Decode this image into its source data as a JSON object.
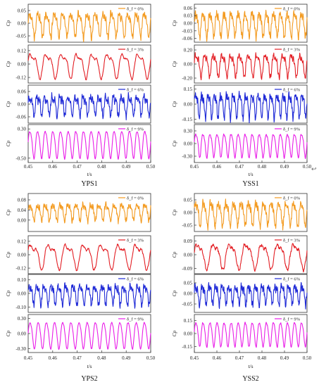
{
  "page": {
    "return_glyph": "↩"
  },
  "chart_data": [
    {
      "type": "line",
      "title": "YPS1",
      "xlabel": "t/s",
      "xlim": [
        0.45,
        0.5
      ],
      "xticks": [
        "0.45",
        "0.46",
        "0.47",
        "0.48",
        "0.49",
        "0.50"
      ],
      "panels": [
        {
          "ylabel": "Cp",
          "legend": "δ_f = 0%",
          "color": "#f39a1f",
          "ylim": [
            -0.075,
            0.075
          ],
          "yticks": [
            "0.05",
            "0.00",
            "-0.05"
          ],
          "series": {
            "cycles": 15,
            "mean": 0.0,
            "amp": 0.05,
            "harm2": 0.35,
            "noise": 0.45,
            "seed": 11
          }
        },
        {
          "ylabel": "Cp",
          "legend": "δ_f = 3%",
          "color": "#e31e24",
          "ylim": [
            -0.17,
            0.17
          ],
          "yticks": [
            "0.12",
            "0.00",
            "-0.12"
          ],
          "series": {
            "cycles": 8,
            "mean": 0.0,
            "amp": 0.12,
            "harm2": 0.45,
            "noise": 0.12,
            "seed": 23
          }
        },
        {
          "ylabel": "Cp",
          "legend": "δ_f = 6%",
          "color": "#1d28d6",
          "ylim": [
            -0.09,
            0.09
          ],
          "yticks": [
            "0.06",
            "0.00",
            "-0.06"
          ],
          "series": {
            "cycles": 16,
            "mean": 0.0,
            "amp": 0.05,
            "harm2": 0.55,
            "noise": 0.55,
            "seed": 37
          }
        },
        {
          "ylabel": "Cp",
          "legend": "δ_f = 9%",
          "color": "#e91ee8",
          "ylim": [
            -0.62,
            0.42
          ],
          "yticks": [
            "0.30",
            "-0.50"
          ],
          "series": {
            "cycles": 16,
            "mean": -0.1,
            "amp": 0.4,
            "harm2": 0.15,
            "noise": 0.05,
            "seed": 41
          }
        }
      ]
    },
    {
      "type": "line",
      "title": "YSS1",
      "xlabel": "t/s",
      "xlim": [
        0.45,
        0.5
      ],
      "xticks": [
        "0.45",
        "0.46",
        "0.47",
        "0.48",
        "0.49",
        "0.50"
      ],
      "panels": [
        {
          "ylabel": "Cp",
          "legend": "δ_f = 0%",
          "color": "#f39a1f",
          "ylim": [
            -0.075,
            0.075
          ],
          "yticks": [
            "0.06",
            "0.03",
            "0.00",
            "-0.03",
            "-0.06"
          ],
          "series": {
            "cycles": 16,
            "mean": 0.0,
            "amp": 0.05,
            "harm2": 0.3,
            "noise": 0.45,
            "seed": 53
          }
        },
        {
          "ylabel": "Cp",
          "legend": "δ_f = 3%",
          "color": "#e31e24",
          "ylim": [
            -0.27,
            0.27
          ],
          "yticks": [
            "0.20",
            "0.00",
            "-0.20"
          ],
          "series": {
            "cycles": 13,
            "mean": 0.0,
            "amp": 0.17,
            "harm2": 0.4,
            "noise": 0.35,
            "seed": 61
          }
        },
        {
          "ylabel": "Cp",
          "legend": "δ_f = 6%",
          "color": "#1d28d6",
          "ylim": [
            -0.19,
            0.19
          ],
          "yticks": [
            "0.15",
            "0.00",
            "-0.15"
          ],
          "series": {
            "cycles": 18,
            "mean": 0.0,
            "amp": 0.13,
            "harm2": 0.45,
            "noise": 0.45,
            "seed": 71
          }
        },
        {
          "ylabel": "Cp",
          "legend": "δ_f = 9%",
          "color": "#e91ee8",
          "ylim": [
            -0.45,
            0.45
          ],
          "yticks": [
            "0.30",
            "0.00",
            "-0.30"
          ],
          "series": {
            "cycles": 16,
            "mean": -0.02,
            "amp": 0.3,
            "harm2": 0.2,
            "noise": 0.1,
            "seed": 83
          }
        }
      ]
    },
    {
      "type": "line",
      "title": "YPS2",
      "xlabel": "t/s",
      "xlim": [
        0.45,
        0.5
      ],
      "xticks": [
        "0.45",
        "0.46",
        "0.47",
        "0.48",
        "0.49",
        "0.50"
      ],
      "panels": [
        {
          "ylabel": "Cp",
          "legend": "δ_f = 0%",
          "color": "#f39a1f",
          "ylim": [
            -0.045,
            0.105
          ],
          "yticks": [
            "0.08",
            "0.04",
            "0.00"
          ],
          "series": {
            "cycles": 16,
            "mean": 0.035,
            "amp": 0.035,
            "harm2": 0.4,
            "noise": 0.5,
            "seed": 97
          }
        },
        {
          "ylabel": "Cp",
          "legend": "δ_f = 3%",
          "color": "#e31e24",
          "ylim": [
            -0.17,
            0.17
          ],
          "yticks": [
            "0.12",
            "0.00",
            "-0.12"
          ],
          "series": {
            "cycles": 7,
            "mean": 0.0,
            "amp": 0.12,
            "harm2": 0.5,
            "noise": 0.15,
            "seed": 101
          }
        },
        {
          "ylabel": "Cp",
          "legend": "δ_f = 6%",
          "color": "#1d28d6",
          "ylim": [
            -0.14,
            0.14
          ],
          "yticks": [
            "0.10",
            "0.00",
            "-0.10"
          ],
          "series": {
            "cycles": 17,
            "mean": 0.0,
            "amp": 0.08,
            "harm2": 0.5,
            "noise": 0.5,
            "seed": 109
          }
        },
        {
          "ylabel": "Cp",
          "legend": "δ_f = 9%",
          "color": "#e91ee8",
          "ylim": [
            -0.38,
            0.38
          ],
          "yticks": [
            "0.30",
            "0.00",
            "-0.30"
          ],
          "series": {
            "cycles": 15,
            "mean": -0.02,
            "amp": 0.28,
            "harm2": 0.12,
            "noise": 0.05,
            "seed": 113
          }
        }
      ]
    },
    {
      "type": "line",
      "title": "YSS2",
      "xlabel": "t/s",
      "xlim": [
        0.45,
        0.5
      ],
      "xticks": [
        "0.45",
        "0.46",
        "0.47",
        "0.48",
        "0.49",
        "0.50"
      ],
      "panels": [
        {
          "ylabel": "Cp",
          "legend": "δ_f = 0%",
          "color": "#f39a1f",
          "ylim": [
            -0.075,
            0.075
          ],
          "yticks": [
            "0.05",
            "0.00",
            "-0.05"
          ],
          "series": {
            "cycles": 15,
            "mean": 0.0,
            "amp": 0.05,
            "harm2": 0.35,
            "noise": 0.45,
            "seed": 127
          }
        },
        {
          "ylabel": "Cp",
          "legend": "δ_f = 3%",
          "color": "#e31e24",
          "ylim": [
            -0.125,
            0.125
          ],
          "yticks": [
            "0.09",
            "0.00",
            "-0.09"
          ],
          "series": {
            "cycles": 7,
            "mean": 0.0,
            "amp": 0.09,
            "harm2": 0.35,
            "noise": 0.2,
            "seed": 131
          }
        },
        {
          "ylabel": "Cp",
          "legend": "δ_f = 6%",
          "color": "#1d28d6",
          "ylim": [
            -0.09,
            0.09
          ],
          "yticks": [
            "0.05",
            "0.00",
            "-0.05"
          ],
          "series": {
            "cycles": 17,
            "mean": 0.0,
            "amp": 0.05,
            "harm2": 0.5,
            "noise": 0.55,
            "seed": 137
          }
        },
        {
          "ylabel": "Cp",
          "legend": "δ_f = 9%",
          "color": "#e91ee8",
          "ylim": [
            -0.22,
            0.22
          ],
          "yticks": [
            "0.15",
            "0.00",
            "-0.15"
          ],
          "series": {
            "cycles": 16,
            "mean": 0.0,
            "amp": 0.15,
            "harm2": 0.15,
            "noise": 0.08,
            "seed": 139
          }
        }
      ]
    }
  ]
}
